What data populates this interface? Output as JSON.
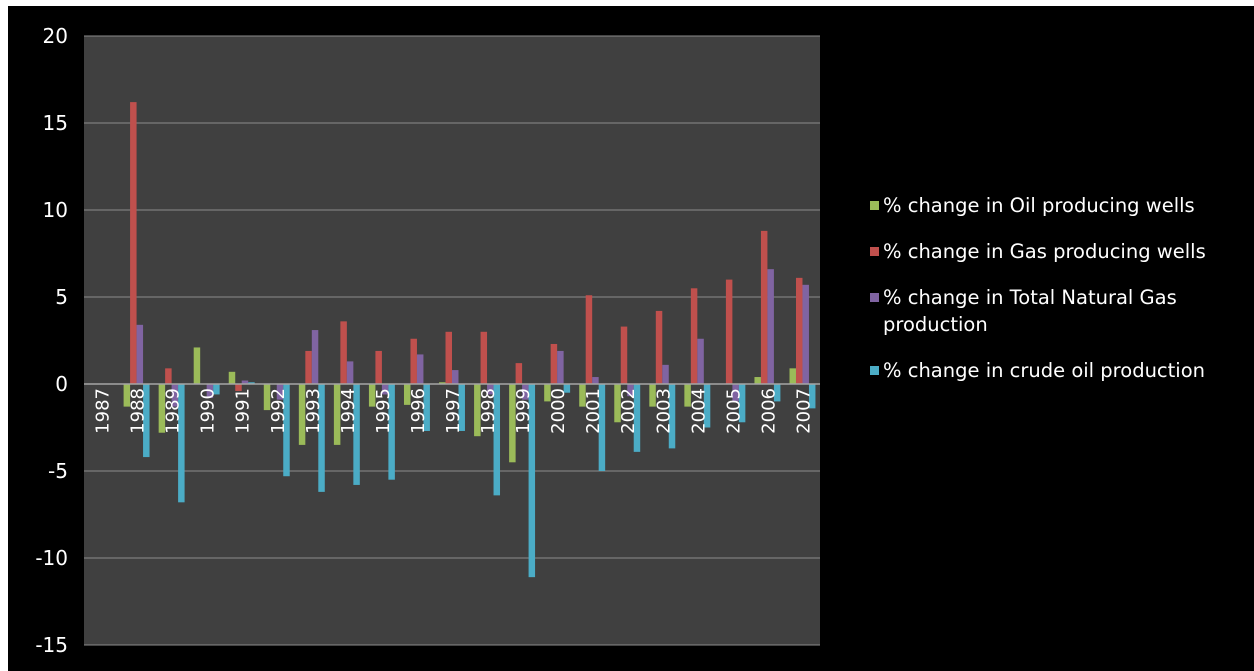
{
  "chart_data": {
    "type": "bar",
    "title": "",
    "xlabel": "",
    "ylabel": "",
    "ylim": [
      -15,
      20
    ],
    "yticks": [
      20,
      15,
      10,
      5,
      0,
      -5,
      -10,
      -15
    ],
    "grid": true,
    "legend_position": "right",
    "background": "#404040",
    "categories": [
      "1987",
      "1988",
      "1989",
      "1990",
      "1991",
      "1992",
      "1993",
      "1994",
      "1995",
      "1996",
      "1997",
      "1998",
      "1999",
      "2000",
      "2001",
      "2002",
      "2003",
      "2004",
      "2005",
      "2006",
      "2007"
    ],
    "series": [
      {
        "name": "% change in Oil producing wells",
        "color": "#9bbb59",
        "values": [
          0,
          -1.3,
          -2.8,
          2.1,
          0.7,
          -1.5,
          -3.5,
          -3.5,
          -1.3,
          -1.2,
          0.1,
          -3.0,
          -4.5,
          -1.0,
          -1.3,
          -2.2,
          -1.3,
          -1.3,
          0,
          0.4,
          0.9
        ]
      },
      {
        "name": "% change in Gas producing wells",
        "color": "#c0504d",
        "values": [
          0,
          16.2,
          0.9,
          0,
          -0.4,
          0,
          1.9,
          3.6,
          1.9,
          2.6,
          3.0,
          3.0,
          1.2,
          2.3,
          5.1,
          3.3,
          4.2,
          5.5,
          6.0,
          8.8,
          6.1
        ]
      },
      {
        "name": "% change in Total Natural Gas production",
        "color": "#8064a2",
        "values": [
          0,
          3.4,
          -1.3,
          -0.8,
          0.2,
          -0.9,
          3.1,
          1.3,
          -0.6,
          1.7,
          0.8,
          -0.6,
          -0.9,
          1.9,
          0.4,
          -0.7,
          1.1,
          2.6,
          -1.0,
          6.6,
          5.7
        ]
      },
      {
        "name": "% change in crude oil production",
        "color": "#4bacc6",
        "values": [
          0,
          -4.2,
          -6.8,
          -0.6,
          0.1,
          -5.3,
          -6.2,
          -5.8,
          -5.5,
          -2.7,
          -2.7,
          -6.4,
          -11.1,
          -0.5,
          -5.0,
          -3.9,
          -3.7,
          -2.5,
          -2.2,
          -1.0,
          -1.4
        ]
      }
    ]
  }
}
